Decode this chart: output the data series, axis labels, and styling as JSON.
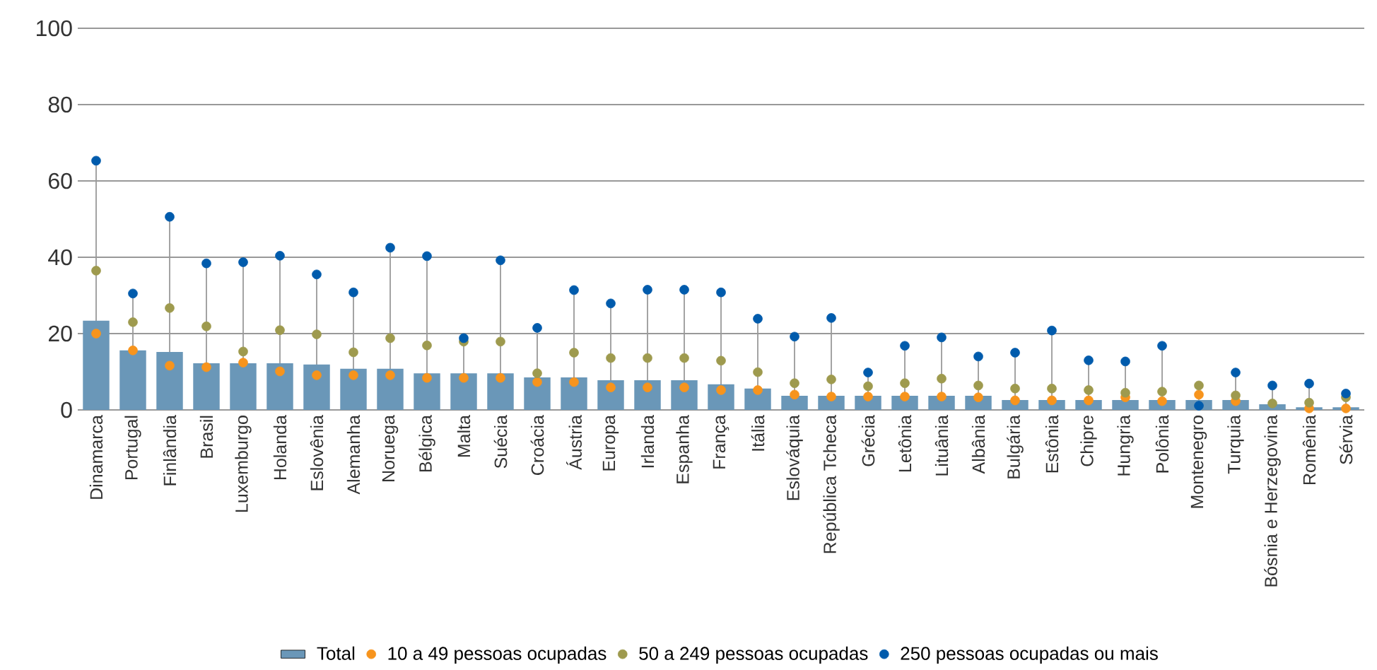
{
  "chart_data": {
    "type": "bar",
    "categories": [
      "Dinamarca",
      "Portugal",
      "Finlândia",
      "Brasil",
      "Luxemburgo",
      "Holanda",
      "Eslovênia",
      "Alemanha",
      "Noruega",
      "Bélgica",
      "Malta",
      "Suécia",
      "Croácia",
      "Áustria",
      "Europa",
      "Irlanda",
      "Espanha",
      "França",
      "Itália",
      "Eslováquia",
      "República Tcheca",
      "Grécia",
      "Letônia",
      "Lituânia",
      "Albânia",
      "Bulgária",
      "Estônia",
      "Chipre",
      "Hungria",
      "Polônia",
      "Montenegro",
      "Turquia",
      "Bósnia e Herzegovina",
      "Romênia",
      "Sérvia"
    ],
    "series": [
      {
        "name": "Total",
        "color": "#6a97b8",
        "values": [
          23.4,
          15.6,
          15.2,
          12.2,
          12.2,
          12.2,
          11.9,
          10.8,
          10.8,
          9.6,
          9.6,
          9.6,
          8.5,
          8.5,
          7.8,
          7.8,
          7.8,
          6.7,
          5.6,
          3.7,
          3.7,
          3.7,
          3.7,
          3.7,
          3.7,
          2.6,
          2.6,
          2.6,
          2.6,
          2.6,
          2.6,
          2.6,
          1.5,
          0.7,
          0.7
        ]
      },
      {
        "name": "10 a 49 pessoas ocupadas",
        "type": "scatter",
        "color": "#f7941d",
        "values": [
          20.0,
          15.6,
          11.6,
          11.2,
          12.4,
          10.1,
          9.1,
          9.1,
          9.1,
          8.4,
          8.4,
          8.4,
          7.3,
          7.3,
          5.9,
          5.9,
          5.9,
          5.2,
          5.2,
          4.0,
          3.5,
          3.5,
          3.5,
          3.5,
          3.3,
          2.5,
          2.5,
          2.5,
          3.3,
          2.3,
          4.0,
          2.3,
          null,
          0.4,
          0.4
        ]
      },
      {
        "name": "50 a 249 pessoas ocupadas",
        "type": "scatter",
        "color": "#9e9a4e",
        "values": [
          36.5,
          23.0,
          26.7,
          21.9,
          15.3,
          20.9,
          19.8,
          15.1,
          18.8,
          16.9,
          17.9,
          17.9,
          9.6,
          15.0,
          13.6,
          13.6,
          13.6,
          12.9,
          9.9,
          7.0,
          8.0,
          6.2,
          7.0,
          8.2,
          6.4,
          5.6,
          5.6,
          5.2,
          4.5,
          4.8,
          6.4,
          3.8,
          1.7,
          1.9,
          3.3
        ]
      },
      {
        "name": "250 pessoas ocupadas ou mais",
        "type": "scatter",
        "color": "#005bac",
        "values": [
          65.3,
          30.5,
          50.6,
          38.4,
          38.7,
          40.4,
          35.5,
          30.8,
          42.5,
          40.3,
          18.8,
          39.2,
          21.5,
          31.4,
          27.9,
          31.5,
          31.5,
          30.8,
          23.9,
          19.2,
          24.1,
          9.8,
          16.8,
          19.0,
          14.0,
          15.0,
          20.8,
          13.0,
          12.7,
          16.8,
          1.1,
          9.8,
          6.4,
          6.9,
          4.3
        ]
      }
    ],
    "ylim": [
      0,
      100
    ],
    "yticks": [
      0,
      20,
      40,
      60,
      80,
      100
    ],
    "grid": "y",
    "legend": "bottom",
    "marker": "circle"
  }
}
